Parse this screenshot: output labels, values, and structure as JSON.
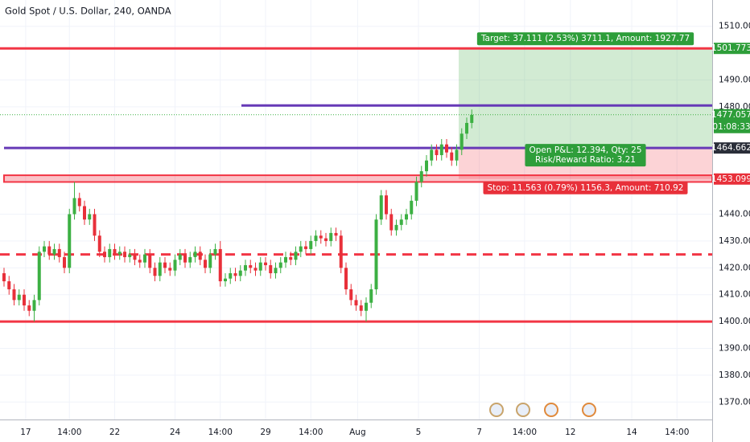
{
  "chart_data": {
    "type": "candlestick",
    "title": "Gold Spot / U.S. Dollar, 240, OANDA",
    "x": [
      0,
      1,
      2,
      3,
      4,
      5,
      6,
      7,
      8,
      9,
      10,
      11,
      12,
      13,
      14,
      15,
      16,
      17,
      18,
      19,
      20,
      21,
      22,
      23,
      24,
      25,
      26,
      27,
      28,
      29,
      30,
      31,
      32,
      33,
      34,
      35,
      36,
      37,
      38,
      39,
      40,
      41,
      42,
      43,
      44,
      45,
      46,
      47,
      48,
      49,
      50,
      51,
      52,
      53,
      54,
      55,
      56,
      57,
      58,
      59,
      60,
      61,
      62,
      63,
      64,
      65,
      66,
      67,
      68,
      69,
      70,
      71,
      72,
      73,
      74,
      75,
      76,
      77,
      78,
      79,
      80,
      81,
      82,
      83,
      84,
      85,
      86,
      87,
      88,
      89,
      90,
      91,
      92,
      93
    ],
    "open": [
      1418,
      1415,
      1412,
      1408,
      1410,
      1406,
      1404,
      1408,
      1426,
      1428,
      1425,
      1427,
      1424,
      1420,
      1440,
      1446,
      1443,
      1438,
      1440,
      1432,
      1426,
      1424,
      1427,
      1425,
      1426,
      1424,
      1425,
      1423,
      1422,
      1425,
      1420,
      1417,
      1422,
      1420,
      1419,
      1423,
      1425,
      1422,
      1424,
      1426,
      1423,
      1420,
      1425,
      1427,
      1415,
      1416,
      1418,
      1417,
      1419,
      1421,
      1420,
      1419,
      1422,
      1421,
      1418,
      1420,
      1422,
      1424,
      1423,
      1426,
      1428,
      1427,
      1430,
      1432,
      1431,
      1430,
      1433,
      1432,
      1420,
      1412,
      1408,
      1406,
      1404,
      1407,
      1412,
      1438,
      1447,
      1440,
      1434,
      1436,
      1438,
      1440,
      1445,
      1452,
      1456,
      1460,
      1464,
      1462,
      1466,
      1463,
      1460,
      1464,
      1470,
      1474
    ],
    "high": [
      1420,
      1417,
      1414,
      1412,
      1412,
      1408,
      1410,
      1428,
      1430,
      1430,
      1429,
      1429,
      1426,
      1442,
      1452,
      1448,
      1445,
      1442,
      1442,
      1434,
      1428,
      1429,
      1429,
      1428,
      1428,
      1427,
      1427,
      1425,
      1427,
      1427,
      1422,
      1424,
      1424,
      1422,
      1425,
      1427,
      1427,
      1426,
      1428,
      1428,
      1425,
      1427,
      1429,
      1430,
      1418,
      1420,
      1420,
      1421,
      1423,
      1423,
      1422,
      1424,
      1424,
      1423,
      1422,
      1424,
      1426,
      1426,
      1428,
      1430,
      1430,
      1432,
      1434,
      1434,
      1433,
      1435,
      1435,
      1434,
      1422,
      1414,
      1410,
      1408,
      1409,
      1414,
      1440,
      1449,
      1449,
      1442,
      1438,
      1440,
      1442,
      1447,
      1454,
      1458,
      1462,
      1466,
      1466,
      1468,
      1468,
      1465,
      1466,
      1472,
      1476,
      1479
    ],
    "low": [
      1413,
      1410,
      1406,
      1406,
      1404,
      1402,
      1400,
      1406,
      1424,
      1423,
      1423,
      1422,
      1418,
      1418,
      1438,
      1441,
      1436,
      1436,
      1430,
      1424,
      1422,
      1422,
      1423,
      1423,
      1422,
      1422,
      1421,
      1420,
      1420,
      1418,
      1415,
      1415,
      1418,
      1417,
      1417,
      1421,
      1420,
      1420,
      1422,
      1421,
      1418,
      1418,
      1423,
      1413,
      1413,
      1414,
      1415,
      1415,
      1417,
      1418,
      1417,
      1417,
      1419,
      1416,
      1416,
      1418,
      1420,
      1421,
      1421,
      1424,
      1425,
      1425,
      1428,
      1429,
      1428,
      1428,
      1430,
      1418,
      1410,
      1406,
      1404,
      1402,
      1400,
      1405,
      1410,
      1436,
      1438,
      1432,
      1432,
      1434,
      1436,
      1438,
      1443,
      1450,
      1454,
      1458,
      1460,
      1460,
      1461,
      1458,
      1458,
      1462,
      1468,
      1472
    ],
    "close": [
      1415,
      1412,
      1408,
      1410,
      1406,
      1404,
      1408,
      1426,
      1428,
      1425,
      1427,
      1424,
      1420,
      1440,
      1446,
      1443,
      1438,
      1440,
      1432,
      1426,
      1424,
      1427,
      1425,
      1426,
      1424,
      1425,
      1423,
      1422,
      1425,
      1420,
      1417,
      1422,
      1420,
      1419,
      1423,
      1425,
      1422,
      1424,
      1426,
      1423,
      1420,
      1425,
      1427,
      1415,
      1416,
      1418,
      1417,
      1419,
      1421,
      1420,
      1419,
      1422,
      1421,
      1418,
      1420,
      1422,
      1424,
      1423,
      1426,
      1428,
      1427,
      1430,
      1432,
      1431,
      1430,
      1433,
      1432,
      1420,
      1412,
      1408,
      1406,
      1404,
      1407,
      1412,
      1438,
      1447,
      1440,
      1434,
      1436,
      1438,
      1440,
      1445,
      1452,
      1456,
      1460,
      1464,
      1462,
      1466,
      1463,
      1460,
      1464,
      1470,
      1474,
      1477
    ],
    "up_color": "#3cb043",
    "down_color": "#e8303a",
    "xlim": [
      -0.8,
      140.8
    ],
    "ylim": [
      1363.5,
      1519.8
    ],
    "xticks": [
      {
        "value": 4.3,
        "label": "17"
      },
      {
        "value": 13,
        "label": "14:00"
      },
      {
        "value": 22,
        "label": "22"
      },
      {
        "value": 34,
        "label": "24"
      },
      {
        "value": 43,
        "label": "14:00"
      },
      {
        "value": 52,
        "label": "29"
      },
      {
        "value": 61,
        "label": "14:00"
      },
      {
        "value": 70.3,
        "label": "Aug"
      },
      {
        "value": 82.4,
        "label": "5"
      },
      {
        "value": 94.5,
        "label": "7"
      },
      {
        "value": 103.5,
        "label": "14:00"
      },
      {
        "value": 112.6,
        "label": "12"
      },
      {
        "value": 124.8,
        "label": "14"
      },
      {
        "value": 133.8,
        "label": "14:00"
      }
    ],
    "yticks": [
      {
        "value": 1370,
        "label": "1370.000"
      },
      {
        "value": 1380,
        "label": "1380.000"
      },
      {
        "value": 1390,
        "label": "1390.000"
      },
      {
        "value": 1400,
        "label": "1400.000"
      },
      {
        "value": 1410,
        "label": "1410.000"
      },
      {
        "value": 1420,
        "label": "1420.000"
      },
      {
        "value": 1430,
        "label": "1430.000"
      },
      {
        "value": 1440,
        "label": "1440.000"
      },
      {
        "value": 1480,
        "label": "1480.000"
      },
      {
        "value": 1490,
        "label": "1490.000"
      },
      {
        "value": 1510,
        "label": "1510.000"
      }
    ],
    "grid": true,
    "levels": [
      {
        "value": 1501.773,
        "color": "#f23645",
        "style": "solid",
        "from": -0.8
      },
      {
        "value": 1480.5,
        "color": "#673ab7",
        "style": "solid",
        "from": 47.2
      },
      {
        "value": 1464.662,
        "color": "#673ab7",
        "style": "solid",
        "from": 0
      },
      {
        "value": 1425,
        "color": "#f23645",
        "style": "dashed",
        "from": -0.8
      },
      {
        "value": 1400,
        "color": "#f23645",
        "style": "solid",
        "from": -0.8
      }
    ],
    "zone": {
      "low": 1452,
      "high": 1454.5,
      "from": 0,
      "color": "#f23645"
    },
    "last_price": 1477.057,
    "countdown": "01:08:33",
    "position": {
      "start": 90.4,
      "entry": 1464.662,
      "target": 1501.773,
      "stop": 1453.099,
      "target_label": "Target: 37.111 (2.53%) 3711.1, Amount: 1927.77",
      "pnl_label": "Open P&L: 12.394, Qty: 25",
      "rr_label": "Risk/Reward Ratio: 3.21",
      "stop_label": "Stop: 11.563 (0.79%) 1156.3, Amount: 710.92"
    }
  }
}
